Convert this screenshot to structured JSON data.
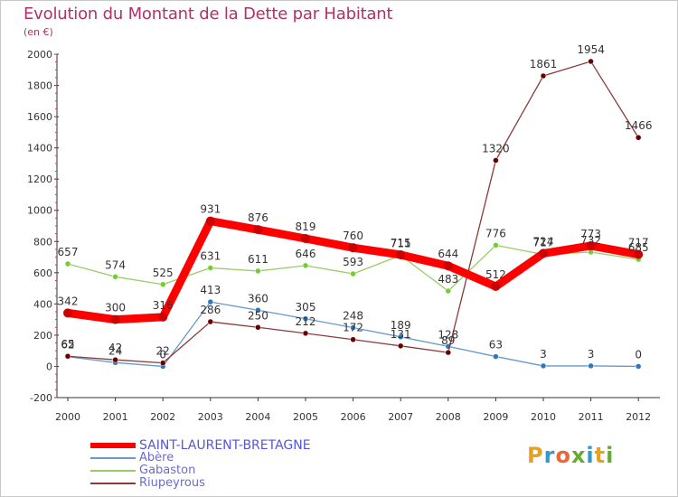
{
  "chart_data": {
    "type": "line",
    "title": "Evolution du Montant de la Dette par Habitant",
    "subtitle": "(en €)",
    "x": [
      "2000",
      "2001",
      "2002",
      "2003",
      "2004",
      "2005",
      "2006",
      "2007",
      "2008",
      "2009",
      "2010",
      "2011",
      "2012"
    ],
    "ylim": [
      -200,
      2000
    ],
    "yticks": [
      "-200",
      "0",
      "200",
      "400",
      "600",
      "800",
      "1000",
      "1200",
      "1400",
      "1600",
      "1800",
      "2000"
    ],
    "grid": false,
    "legend_position": "bottom-left",
    "series": [
      {
        "name": "SAINT-LAURENT-BRETAGNE",
        "color": "#ff0000",
        "marker": "#cc0000",
        "values": [
          342,
          300,
          316,
          931,
          876,
          819,
          760,
          715,
          644,
          512,
          724,
          773,
          717
        ],
        "labels": [
          "342",
          "300",
          "316",
          "931",
          "876",
          "819",
          "760",
          "715",
          "644",
          "512",
          "724",
          "773",
          "717"
        ]
      },
      {
        "name": "Abère",
        "color": "#6699cc",
        "marker": "#3377bb",
        "values": [
          62,
          24,
          0,
          413,
          360,
          305,
          248,
          189,
          128,
          63,
          3,
          3,
          0
        ],
        "labels": [
          "62",
          "24",
          "0",
          "413",
          "360",
          "305",
          "248",
          "189",
          "128",
          "63",
          "3",
          "3",
          "0"
        ]
      },
      {
        "name": "Gabaston",
        "color": "#99cc66",
        "marker": "#77cc33",
        "values": [
          657,
          574,
          525,
          631,
          611,
          646,
          593,
          711,
          483,
          776,
          717,
          732,
          685
        ],
        "labels": [
          "657",
          "574",
          "525",
          "631",
          "611",
          "646",
          "593",
          "711",
          "483",
          "776",
          "717",
          "732",
          "685"
        ]
      },
      {
        "name": "Riupeyrous",
        "color": "#8b3a3a",
        "marker": "#660000",
        "values": [
          65,
          42,
          22,
          286,
          250,
          212,
          172,
          131,
          89,
          1320,
          1861,
          1954,
          1466
        ],
        "labels": [
          "65",
          "42",
          "22",
          "286",
          "250",
          "212",
          "172",
          "131",
          "89",
          "1320",
          "1861",
          "1954",
          "1466"
        ]
      }
    ]
  },
  "logo": {
    "text": "Proxiti",
    "letters": [
      "P",
      "r",
      "o",
      "x",
      "i",
      "t",
      "i"
    ],
    "colors": [
      "#e8a020",
      "#3399cc",
      "#ee6633",
      "#66aa33",
      "#3399cc",
      "#e8a020",
      "#66aa33"
    ]
  }
}
